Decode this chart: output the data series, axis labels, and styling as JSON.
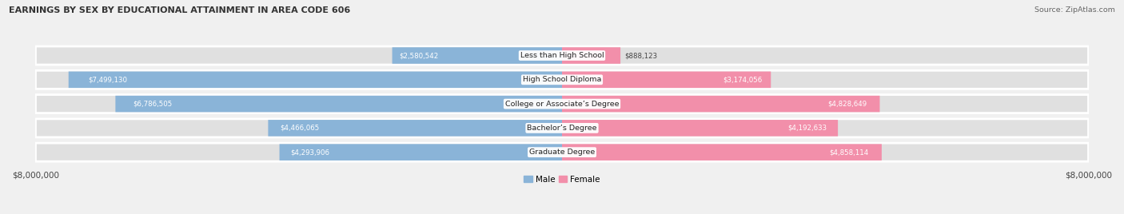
{
  "title": "EARNINGS BY SEX BY EDUCATIONAL ATTAINMENT IN AREA CODE 606",
  "source": "Source: ZipAtlas.com",
  "categories": [
    "Less than High School",
    "High School Diploma",
    "College or Associate’s Degree",
    "Bachelor’s Degree",
    "Graduate Degree"
  ],
  "male_values": [
    2580542,
    7499130,
    6786505,
    4466065,
    4293906
  ],
  "female_values": [
    888123,
    3174056,
    4828649,
    4192633,
    4858114
  ],
  "male_labels": [
    "$2,580,542",
    "$7,499,130",
    "$6,786,505",
    "$4,466,065",
    "$4,293,906"
  ],
  "female_labels": [
    "$888,123",
    "$3,174,056",
    "$4,828,649",
    "$4,192,633",
    "$4,858,114"
  ],
  "male_color": "#8ab4d8",
  "female_color": "#f28faa",
  "bg_color": "#f0f0f0",
  "bar_bg_color": "#e0e0e0",
  "max_val": 8000000,
  "figsize": [
    14.06,
    2.68
  ],
  "dpi": 100,
  "label_threshold": 0.3,
  "inside_color_male": "#ffffff",
  "inside_color_female": "#ffffff",
  "outside_color": "#444444"
}
